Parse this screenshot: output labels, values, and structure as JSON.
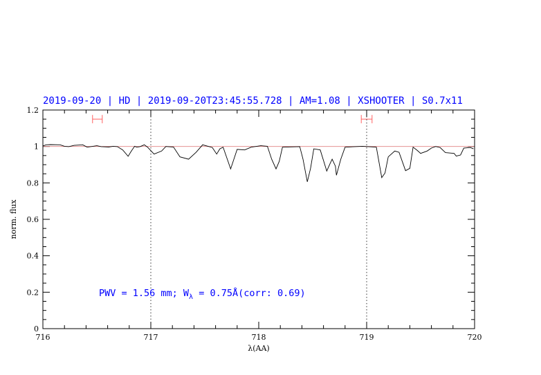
{
  "chart_data": {
    "type": "line",
    "title": "2019-09-20 | HD | 2019-09-20T23:45:55.728 | AM=1.08 | XSHOOTER | S0.7x11",
    "xlabel": "λ(AA)",
    "ylabel": "norm. flux",
    "xlim": [
      716,
      720
    ],
    "ylim": [
      0,
      1.2
    ],
    "xticks": [
      "716",
      "717",
      "718",
      "719",
      "720"
    ],
    "yticks": [
      "0",
      "0.2",
      "0.4",
      "0.6",
      "0.8",
      "1",
      "1.2"
    ],
    "grid": false,
    "reference_line": 1.0,
    "vertical_lines": [
      717,
      719
    ],
    "error_bars": [
      {
        "x": [
          716.46,
          716.55
        ],
        "y": 1.15
      },
      {
        "x": [
          718.95,
          719.05
        ],
        "y": 1.15
      }
    ],
    "annotation": {
      "pre": "PWV = 1.56 mm; W",
      "sub": "λ",
      "post": " = 0.75Å(corr: 0.69)"
    },
    "colors": {
      "spectrum": "#000000",
      "title": "#0000ff",
      "reference": "#e08080",
      "error_bar": "#ff6060"
    },
    "x": [
      716.0,
      716.03,
      716.07,
      716.16,
      716.2,
      716.24,
      716.29,
      716.37,
      716.41,
      716.5,
      716.54,
      716.61,
      716.65,
      716.69,
      716.74,
      716.79,
      716.82,
      716.85,
      716.87,
      716.9,
      716.94,
      716.97,
      717.03,
      717.1,
      717.14,
      717.21,
      717.27,
      717.35,
      717.42,
      717.48,
      717.53,
      717.57,
      717.61,
      717.64,
      717.67,
      717.74,
      717.8,
      717.87,
      717.93,
      718.02,
      718.08,
      718.12,
      718.16,
      718.19,
      718.22,
      718.38,
      718.41,
      718.45,
      718.48,
      718.51,
      718.57,
      718.63,
      718.66,
      718.68,
      718.71,
      718.72,
      718.76,
      718.8,
      718.96,
      719.09,
      719.14,
      719.17,
      719.2,
      719.26,
      719.3,
      719.36,
      719.4,
      719.43,
      719.47,
      719.5,
      719.56,
      719.6,
      719.64,
      719.68,
      719.73,
      719.81,
      719.83,
      719.87,
      719.9,
      719.96,
      719.99
    ],
    "y": [
      1.003,
      1.009,
      1.01,
      1.009,
      1.001,
      0.999,
      1.006,
      1.009,
      0.996,
      1.004,
      0.999,
      0.997,
      1.001,
      0.999,
      0.981,
      0.946,
      0.975,
      1.001,
      0.996,
      0.999,
      1.009,
      0.996,
      0.958,
      0.975,
      1.0,
      0.997,
      0.943,
      0.93,
      0.968,
      1.009,
      1.001,
      0.994,
      0.958,
      0.987,
      0.996,
      0.877,
      0.984,
      0.981,
      0.996,
      1.004,
      1.001,
      0.93,
      0.877,
      0.918,
      0.996,
      0.999,
      0.93,
      0.806,
      0.88,
      0.987,
      0.981,
      0.865,
      0.905,
      0.93,
      0.892,
      0.842,
      0.93,
      0.996,
      1.001,
      0.996,
      0.829,
      0.854,
      0.943,
      0.975,
      0.968,
      0.867,
      0.88,
      0.996,
      0.978,
      0.962,
      0.975,
      0.991,
      1.0,
      0.994,
      0.966,
      0.962,
      0.947,
      0.953,
      0.991,
      0.994,
      0.987
    ]
  }
}
